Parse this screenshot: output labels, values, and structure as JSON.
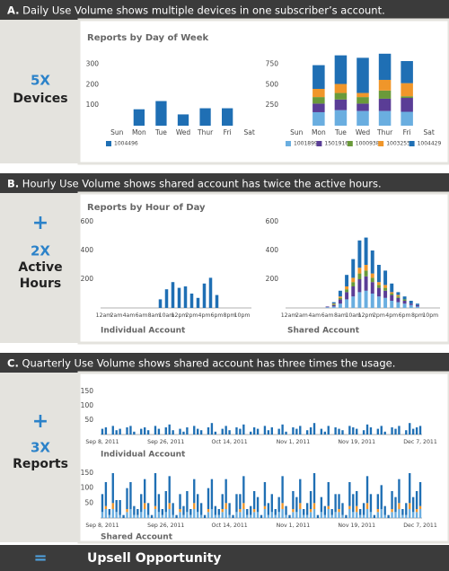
{
  "sections": [
    {
      "label": "A.",
      "text": "Daily Use Volume shows multiple devices in one subscriber’s account.",
      "sidebar": [
        "5X",
        "Devices"
      ]
    },
    {
      "label": "B.",
      "text": "Hourly Use Volume shows shared account has twice the active hours.",
      "sidebar": [
        "+",
        "2X",
        "Active",
        "Hours"
      ]
    },
    {
      "label": "C.",
      "text": "Quarterly Use Volume shows shared account has three times the usage.",
      "sidebar": [
        "+",
        "3X",
        "Reports"
      ]
    }
  ],
  "footer": {
    "symbol": "=",
    "text": "Upsell Opportunity"
  },
  "chart_data": [
    {
      "type": "bar",
      "title": "Reports by Day of Week",
      "categories": [
        "Sun",
        "Mon",
        "Tue",
        "Wed",
        "Thur",
        "Fri",
        "Sat"
      ],
      "series": [
        {
          "name": "1004496",
          "color": "#1f6fb4",
          "values": [
            0,
            80,
            120,
            55,
            85,
            85,
            0
          ]
        }
      ],
      "ylim": [
        0,
        350
      ],
      "yticks": [
        100,
        200,
        300
      ],
      "baseline": false
    },
    {
      "type": "bar",
      "categories": [
        "Sun",
        "Mon",
        "Tue",
        "Wed",
        "Thur",
        "Fri",
        "Sat"
      ],
      "series": [
        {
          "name": "1001899",
          "color": "#6aaee0",
          "values": [
            0,
            165,
            190,
            180,
            180,
            170,
            0
          ]
        },
        {
          "name": "1501916",
          "color": "#5a3d96",
          "values": [
            0,
            105,
            130,
            90,
            150,
            170,
            0
          ]
        },
        {
          "name": "1000938",
          "color": "#6a9a3a",
          "values": [
            0,
            80,
            80,
            80,
            100,
            20,
            0
          ]
        },
        {
          "name": "1003255",
          "color": "#f0962a",
          "values": [
            0,
            100,
            110,
            50,
            130,
            160,
            0
          ]
        },
        {
          "name": "1004429",
          "color": "#1f6fb4",
          "values": [
            0,
            290,
            350,
            430,
            320,
            270,
            0
          ]
        }
      ],
      "ylim": [
        0,
        900
      ],
      "yticks": [
        250,
        500,
        750
      ],
      "baseline": false
    },
    {
      "type": "bar",
      "title": "Reports by Hour of Day",
      "xlabel": "Individual Account",
      "categories": [
        "12am",
        null,
        "2am",
        null,
        "4am",
        null,
        "6am",
        null,
        "8am",
        null,
        "10am",
        null,
        "12pm",
        null,
        "2pm",
        null,
        "4pm",
        null,
        "6pm",
        null,
        "8pm",
        null,
        "10pm",
        null
      ],
      "values": [
        0,
        0,
        0,
        0,
        0,
        0,
        0,
        0,
        0,
        60,
        130,
        180,
        140,
        150,
        100,
        70,
        170,
        210,
        90,
        0,
        0,
        0,
        0,
        0
      ],
      "color": "#1f6fb4",
      "ylim": [
        0,
        600
      ],
      "yticks": [
        200,
        400,
        600
      ],
      "baseline": true
    },
    {
      "type": "bar",
      "xlabel": "Shared Account",
      "categories": [
        "12am",
        null,
        "2am",
        null,
        "4am",
        null,
        "6am",
        null,
        "8am",
        null,
        "10am",
        null,
        "12pm",
        null,
        "2pm",
        null,
        "4pm",
        null,
        "6pm",
        null,
        "8pm",
        null,
        "10pm",
        null
      ],
      "series": [
        {
          "color": "#6aaee0",
          "values": [
            0,
            0,
            0,
            0,
            0,
            0,
            5,
            10,
            30,
            60,
            80,
            110,
            120,
            100,
            80,
            70,
            50,
            40,
            30,
            20,
            10,
            0,
            0,
            0
          ]
        },
        {
          "color": "#5a3d96",
          "values": [
            0,
            0,
            0,
            0,
            0,
            0,
            5,
            10,
            30,
            50,
            70,
            90,
            100,
            80,
            60,
            50,
            40,
            30,
            20,
            10,
            10,
            0,
            0,
            0
          ]
        },
        {
          "color": "#6a9a3a",
          "values": [
            0,
            0,
            0,
            0,
            0,
            0,
            0,
            5,
            10,
            20,
            30,
            40,
            40,
            30,
            20,
            20,
            10,
            10,
            10,
            0,
            0,
            0,
            0,
            0
          ]
        },
        {
          "color": "#f0962a",
          "values": [
            0,
            0,
            0,
            0,
            0,
            0,
            0,
            5,
            10,
            20,
            30,
            40,
            40,
            30,
            20,
            20,
            10,
            10,
            0,
            0,
            0,
            0,
            0,
            0
          ]
        },
        {
          "color": "#1f6fb4",
          "values": [
            0,
            0,
            0,
            0,
            0,
            0,
            0,
            10,
            40,
            80,
            130,
            190,
            190,
            160,
            120,
            100,
            60,
            20,
            20,
            20,
            10,
            0,
            0,
            0
          ]
        }
      ],
      "ylim": [
        0,
        600
      ],
      "yticks": [
        200,
        400,
        600
      ],
      "baseline": true
    },
    {
      "type": "bar",
      "xlabel": "Individual Account",
      "categories": [
        "Sep 8, 2011",
        null,
        null,
        null,
        null,
        null,
        null,
        null,
        null,
        null,
        null,
        null,
        null,
        null,
        null,
        null,
        null,
        null,
        "Sep 26, 2011",
        null,
        null,
        null,
        null,
        null,
        null,
        null,
        null,
        null,
        null,
        null,
        null,
        null,
        null,
        null,
        null,
        null,
        "Oct 14, 2011",
        null,
        null,
        null,
        null,
        null,
        null,
        null,
        null,
        null,
        null,
        null,
        null,
        null,
        null,
        null,
        null,
        null,
        "Nov 1, 2011",
        null,
        null,
        null,
        null,
        null,
        null,
        null,
        null,
        null,
        null,
        null,
        null,
        null,
        null,
        null,
        null,
        null,
        "Nov 19, 2011",
        null,
        null,
        null,
        null,
        null,
        null,
        null,
        null,
        null,
        null,
        null,
        null,
        null,
        null,
        null,
        null,
        null,
        "Dec 7, 2011"
      ],
      "values": [
        20,
        25,
        0,
        30,
        15,
        20,
        0,
        25,
        30,
        10,
        0,
        20,
        25,
        15,
        0,
        30,
        20,
        0,
        25,
        35,
        15,
        0,
        20,
        10,
        25,
        0,
        30,
        20,
        15,
        0,
        25,
        40,
        10,
        0,
        20,
        30,
        15,
        0,
        25,
        20,
        35,
        0,
        10,
        25,
        20,
        0,
        30,
        15,
        25,
        0,
        20,
        35,
        10,
        0,
        25,
        20,
        30,
        0,
        15,
        25,
        40,
        0,
        20,
        10,
        30,
        0,
        25,
        20,
        15,
        0,
        30,
        25,
        20,
        0,
        15,
        35,
        25,
        0,
        20,
        30,
        10,
        0,
        25,
        20,
        30,
        0,
        15,
        40,
        20,
        25,
        30
      ],
      "color": "#1f6fb4",
      "ylim": [
        0,
        150
      ],
      "yticks": [
        50,
        100,
        150
      ],
      "baseline": true
    },
    {
      "type": "bar",
      "xlabel": "Shared Account",
      "categories": [
        "Sep 8, 2011",
        null,
        null,
        null,
        null,
        null,
        null,
        null,
        null,
        null,
        null,
        null,
        null,
        null,
        null,
        null,
        null,
        null,
        "Sep 26, 2011",
        null,
        null,
        null,
        null,
        null,
        null,
        null,
        null,
        null,
        null,
        null,
        null,
        null,
        null,
        null,
        null,
        null,
        "Oct 14, 2011",
        null,
        null,
        null,
        null,
        null,
        null,
        null,
        null,
        null,
        null,
        null,
        null,
        null,
        null,
        null,
        null,
        null,
        "Nov 1, 2011",
        null,
        null,
        null,
        null,
        null,
        null,
        null,
        null,
        null,
        null,
        null,
        null,
        null,
        null,
        null,
        null,
        null,
        "Nov 19, 2011",
        null,
        null,
        null,
        null,
        null,
        null,
        null,
        null,
        null,
        null,
        null,
        null,
        null,
        null,
        null,
        null,
        null,
        "Dec 7, 2011"
      ],
      "series": [
        {
          "color": "#6aaee0",
          "values": [
            20,
            30,
            10,
            30,
            20,
            10,
            0,
            20,
            30,
            10,
            10,
            20,
            30,
            10,
            0,
            30,
            20,
            10,
            20,
            30,
            10,
            0,
            20,
            10,
            20,
            10,
            30,
            20,
            10,
            0,
            20,
            30,
            10,
            10,
            20,
            30,
            10,
            0,
            20,
            20,
            30,
            10,
            10,
            20,
            20,
            0,
            30,
            10,
            20,
            10,
            20,
            30,
            10,
            0,
            20,
            20,
            30,
            10,
            10,
            20,
            30,
            0,
            20,
            10,
            30,
            10,
            20,
            20,
            10,
            0,
            30,
            20,
            20,
            10,
            10,
            30,
            20,
            0,
            20,
            30,
            10,
            0,
            20,
            20,
            30,
            10,
            10,
            30,
            20,
            20,
            30
          ]
        },
        {
          "color": "#f0962a",
          "values": [
            0,
            10,
            0,
            20,
            0,
            0,
            0,
            10,
            0,
            0,
            0,
            0,
            20,
            0,
            0,
            10,
            0,
            0,
            0,
            20,
            0,
            0,
            10,
            0,
            0,
            0,
            20,
            0,
            0,
            0,
            10,
            0,
            0,
            0,
            10,
            20,
            0,
            0,
            0,
            10,
            20,
            0,
            0,
            10,
            0,
            0,
            10,
            0,
            0,
            0,
            0,
            20,
            0,
            0,
            10,
            0,
            20,
            0,
            0,
            10,
            20,
            0,
            0,
            0,
            10,
            0,
            0,
            10,
            0,
            0,
            10,
            0,
            20,
            0,
            0,
            20,
            0,
            0,
            10,
            0,
            0,
            0,
            10,
            0,
            20,
            0,
            0,
            20,
            0,
            10,
            10
          ]
        },
        {
          "color": "#1f6fb4",
          "values": [
            60,
            80,
            20,
            100,
            40,
            50,
            10,
            70,
            90,
            30,
            20,
            60,
            80,
            40,
            10,
            110,
            60,
            20,
            70,
            90,
            40,
            10,
            50,
            30,
            70,
            20,
            80,
            60,
            40,
            10,
            70,
            100,
            30,
            20,
            50,
            80,
            40,
            10,
            60,
            50,
            90,
            20,
            30,
            60,
            50,
            10,
            80,
            40,
            60,
            20,
            50,
            90,
            30,
            10,
            60,
            50,
            80,
            20,
            40,
            60,
            100,
            10,
            50,
            30,
            80,
            20,
            60,
            50,
            40,
            10,
            80,
            60,
            50,
            20,
            40,
            90,
            60,
            10,
            50,
            80,
            30,
            10,
            60,
            50,
            80,
            20,
            40,
            100,
            50,
            60,
            80
          ]
        }
      ],
      "ylim": [
        0,
        150
      ],
      "yticks": [
        50,
        100,
        150
      ],
      "baseline": true
    }
  ]
}
